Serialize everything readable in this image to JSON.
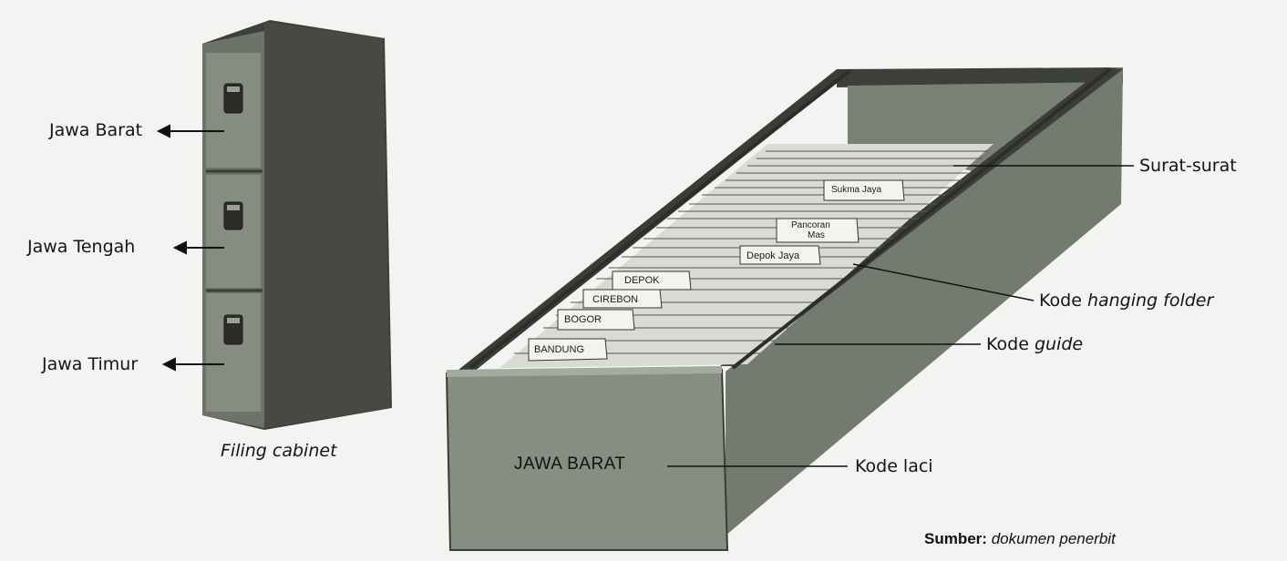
{
  "cabinet": {
    "drawers": [
      "Jawa Barat",
      "Jawa Tengah",
      "Jawa Timur"
    ],
    "caption": "Filing cabinet"
  },
  "drawer": {
    "front_label": "JAWA BARAT",
    "guides": [
      "BANDUNG",
      "BOGOR",
      "CIREBON",
      "DEPOK"
    ],
    "folder_tabs": [
      "Depok Jaya",
      "Pancoran",
      "Mas",
      "Sukma Jaya"
    ]
  },
  "callouts": {
    "letters": "Surat-surat",
    "hanging_folder_prefix": "Kode ",
    "hanging_folder_term": "hanging folder",
    "guide_prefix": "Kode ",
    "guide_term": "guide",
    "drawer_code": "Kode laci"
  },
  "source": {
    "label": "Sumber:",
    "text": "dokumen penerbit"
  },
  "colors": {
    "metal_dark": "#3f423d",
    "metal_mid": "#6b7166",
    "metal_light": "#8f958a",
    "paper": "#f4f4ef"
  }
}
